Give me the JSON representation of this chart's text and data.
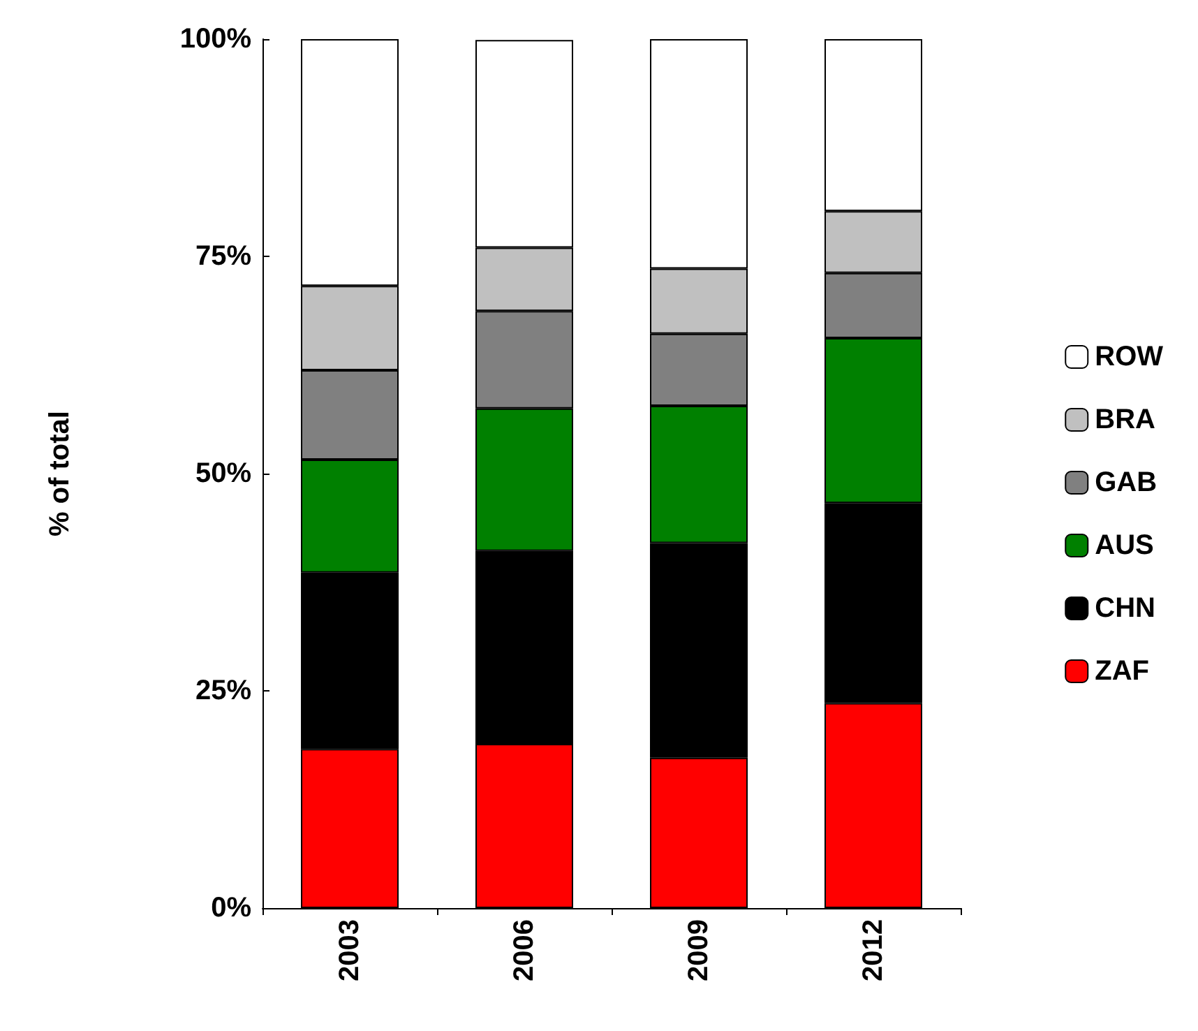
{
  "chart_data": {
    "type": "bar",
    "stacked": true,
    "ylabel": "% of total",
    "categories": [
      "2003",
      "2006",
      "2009",
      "2012"
    ],
    "series": [
      {
        "name": "ZAF",
        "color": "#ff0000",
        "values": [
          18.3,
          18.9,
          17.3,
          23.6
        ]
      },
      {
        "name": "CHN",
        "color": "#000000",
        "values": [
          20.3,
          22.2,
          24.7,
          23.0
        ]
      },
      {
        "name": "AUS",
        "color": "#008000",
        "values": [
          13.0,
          16.4,
          15.8,
          19.0
        ]
      },
      {
        "name": "GAB",
        "color": "#808080",
        "values": [
          10.3,
          11.2,
          8.3,
          7.5
        ]
      },
      {
        "name": "BRA",
        "color": "#c0c0c0",
        "values": [
          9.7,
          7.3,
          7.5,
          7.1
        ]
      },
      {
        "name": "ROW",
        "color": "#ffffff",
        "values": [
          28.4,
          23.9,
          26.4,
          19.8
        ]
      }
    ],
    "ylim": [
      0,
      100
    ],
    "yticks": [
      {
        "value": 0,
        "label": "0%"
      },
      {
        "value": 25,
        "label": "25%"
      },
      {
        "value": 50,
        "label": "50%"
      },
      {
        "value": 75,
        "label": "75%"
      },
      {
        "value": 100,
        "label": "100%"
      }
    ],
    "grid": false,
    "legend": "right"
  }
}
